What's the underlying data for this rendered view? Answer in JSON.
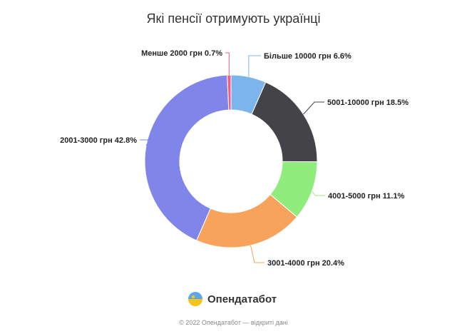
{
  "chart_data": {
    "type": "pie",
    "variant": "donut",
    "title": "Які пенсії отримують українці",
    "categories": [
      "Більше 10000 грн",
      "5001-10000 грн",
      "4001-5000 грн",
      "3001-4000 грн",
      "2001-3000 грн",
      "Менше 2000 грн"
    ],
    "values": [
      6.6,
      18.5,
      11.1,
      20.4,
      42.8,
      0.7
    ],
    "labels": [
      "Більше 10000 грн 6.6%",
      "5001-10000 грн 18.5%",
      "4001-5000 грн 11.1%",
      "3001-4000 грн 20.4%",
      "2001-3000 грн 42.8%",
      "Менше 2000 грн 0.7%"
    ],
    "colors": [
      "#7cb5ec",
      "#434348",
      "#90ed7d",
      "#f7a35c",
      "#8085e9",
      "#f15c80"
    ]
  },
  "branding": {
    "logo_text": "Опендатабот",
    "copyright": "© 2022 Опендатабот — відкриті дані"
  }
}
